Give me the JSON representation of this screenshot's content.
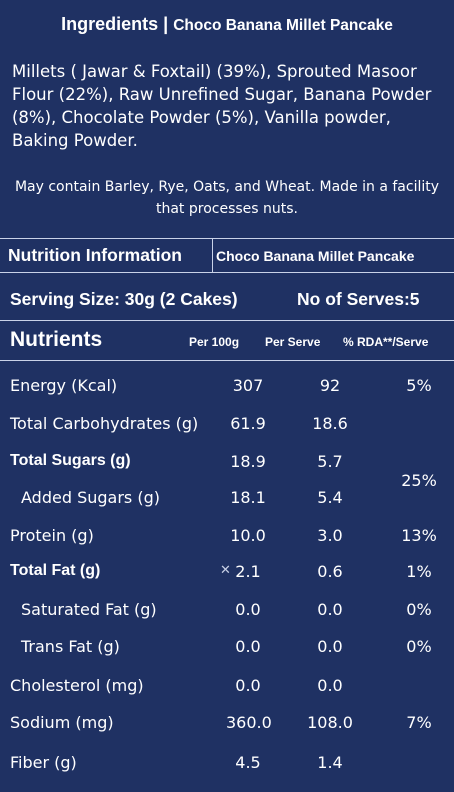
{
  "header": {
    "label": "Ingredients |",
    "product": "Choco Banana Millet Pancake"
  },
  "ingredients_text": "Millets ( Jawar & Foxtail) (39%),  Sprouted Masoor Flour (22%), Raw Unrefined Sugar, Banana Powder (8%), Chocolate Powder (5%), Vanilla powder, Baking Powder.",
  "allergen_text": "May contain Barley, Rye, Oats, and Wheat. Made in a facility that processes nuts.",
  "nutrition": {
    "heading": "Nutrition Information",
    "product": "Choco Banana Millet Pancake",
    "serving_size": "Serving Size: 30g (2 Cakes)",
    "serves": "No of Serves:5",
    "nutrients_label": "Nutrients",
    "col_per100": "Per 100g",
    "col_perserve": "Per Serve",
    "col_rda": "% RDA**/Serve",
    "sugars_rda": "25%",
    "rows": [
      {
        "name": "Energy (Kcal)",
        "per100": "307",
        "serve": "92",
        "rda": "5%"
      },
      {
        "name": "Total Carbohydrates (g)",
        "per100": "61.9",
        "serve": "18.6",
        "rda": ""
      },
      {
        "name": "Total Sugars (g)",
        "per100": "18.9",
        "serve": "5.7",
        "rda": ""
      },
      {
        "name": "Added Sugars (g)",
        "per100": "18.1",
        "serve": "5.4",
        "rda": ""
      },
      {
        "name": "Protein (g)",
        "per100": "10.0",
        "serve": "3.0",
        "rda": "13%"
      },
      {
        "name": "Total Fat (g)",
        "per100": "2.1",
        "serve": "0.6",
        "rda": "1%"
      },
      {
        "name": "Saturated Fat (g)",
        "per100": "0.0",
        "serve": "0.0",
        "rda": "0%"
      },
      {
        "name": "Trans Fat (g)",
        "per100": "0.0",
        "serve": "0.0",
        "rda": "0%"
      },
      {
        "name": "Cholesterol (mg)",
        "per100": "0.0",
        "serve": "0.0",
        "rda": ""
      },
      {
        "name": "Sodium (mg)",
        "per100": "360.0",
        "serve": "108.0",
        "rda": "7%"
      },
      {
        "name": "Fiber (g)",
        "per100": "4.5",
        "serve": "1.4",
        "rda": ""
      }
    ]
  },
  "colors": {
    "background": "#1f3163",
    "text": "#ffffff",
    "rule": "#c9d2e8"
  }
}
